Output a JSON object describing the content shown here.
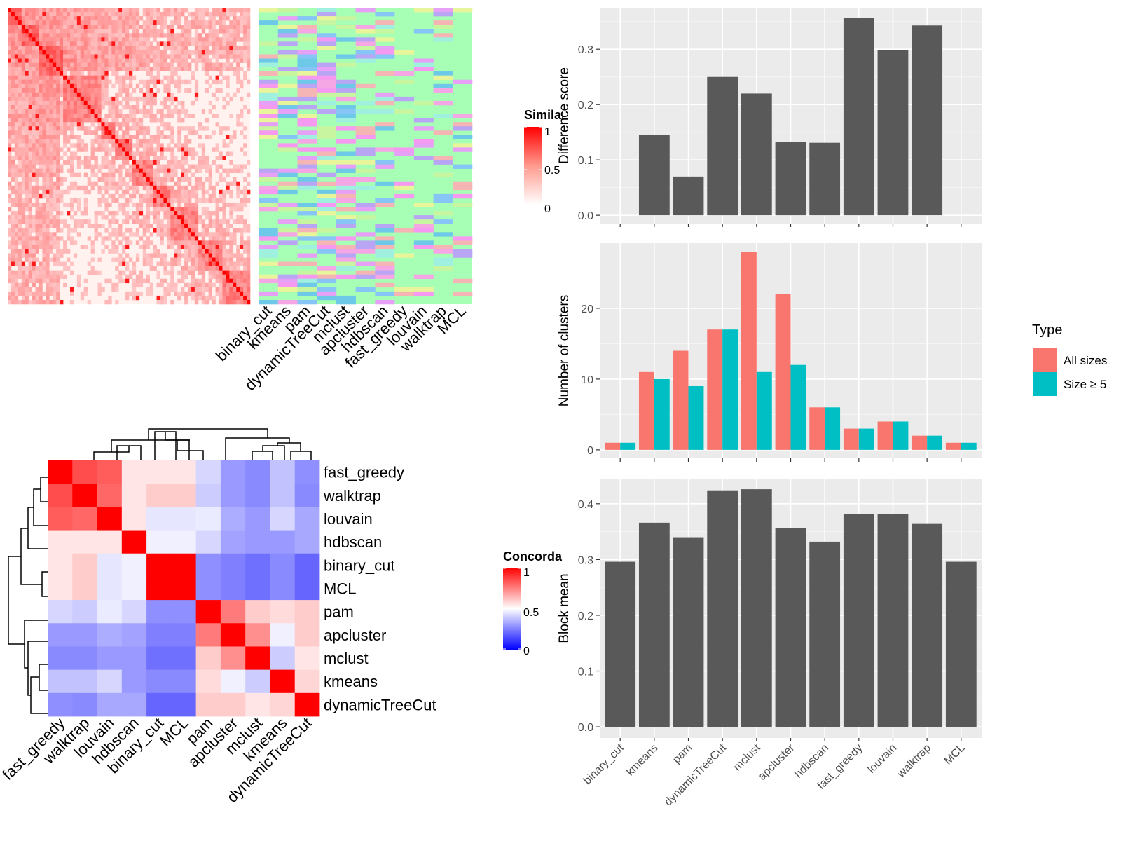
{
  "colors": {
    "panel_bg": "#EBEBEB",
    "grid": "#FFFFFF",
    "bar_dark": "#595959",
    "all_sizes": "#F8766D",
    "size_ge_5": "#00BFC4",
    "sim_high": "#FF0000",
    "sim_low": "#FFFFFF",
    "conc_low": "#0000FF",
    "conc_mid": "#FFFFFF",
    "conc_high": "#FF0000",
    "label_green": "#A6FFB5"
  },
  "similarity_heatmap": {
    "legend_title": "Similarity",
    "legend_ticks": [
      "1",
      "0.5",
      "0"
    ]
  },
  "label_matrix": {
    "columns": [
      "binary_cut",
      "kmeans",
      "pam",
      "dynamicTreeCut",
      "mclust",
      "apcluster",
      "hdbscan",
      "fast_greedy",
      "louvain",
      "walktrap",
      "MCL"
    ]
  },
  "concordance_heatmap": {
    "legend_title": "Concordance",
    "legend_ticks": [
      "1",
      "0.5",
      "0"
    ],
    "rows": [
      "fast_greedy",
      "walktrap",
      "louvain",
      "hdbscan",
      "binary_cut",
      "MCL",
      "pam",
      "apcluster",
      "mclust",
      "kmeans",
      "dynamicTreeCut"
    ],
    "columns": [
      "fast_greedy",
      "walktrap",
      "louvain",
      "hdbscan",
      "binary_cut",
      "MCL",
      "pam",
      "apcluster",
      "mclust",
      "kmeans",
      "dynamicTreeCut"
    ],
    "values": [
      [
        1.0,
        0.85,
        0.82,
        0.55,
        0.55,
        0.55,
        0.42,
        0.3,
        0.27,
        0.38,
        0.28
      ],
      [
        0.85,
        1.0,
        0.8,
        0.55,
        0.6,
        0.6,
        0.4,
        0.3,
        0.27,
        0.38,
        0.27
      ],
      [
        0.82,
        0.8,
        1.0,
        0.55,
        0.45,
        0.45,
        0.46,
        0.34,
        0.3,
        0.42,
        0.33
      ],
      [
        0.55,
        0.55,
        0.55,
        1.0,
        0.47,
        0.47,
        0.42,
        0.32,
        0.3,
        0.3,
        0.33
      ],
      [
        0.55,
        0.6,
        0.45,
        0.47,
        1.0,
        1.0,
        0.28,
        0.25,
        0.22,
        0.27,
        0.2
      ],
      [
        0.55,
        0.6,
        0.45,
        0.47,
        1.0,
        1.0,
        0.28,
        0.25,
        0.22,
        0.27,
        0.2
      ],
      [
        0.42,
        0.4,
        0.46,
        0.42,
        0.28,
        0.28,
        1.0,
        0.76,
        0.6,
        0.57,
        0.6
      ],
      [
        0.3,
        0.3,
        0.34,
        0.32,
        0.25,
        0.25,
        0.76,
        1.0,
        0.72,
        0.47,
        0.6
      ],
      [
        0.27,
        0.27,
        0.3,
        0.3,
        0.22,
        0.22,
        0.6,
        0.72,
        1.0,
        0.4,
        0.55
      ],
      [
        0.38,
        0.38,
        0.42,
        0.3,
        0.27,
        0.27,
        0.57,
        0.47,
        0.4,
        1.0,
        0.58
      ],
      [
        0.28,
        0.27,
        0.33,
        0.33,
        0.2,
        0.2,
        0.6,
        0.6,
        0.55,
        0.58,
        1.0
      ]
    ]
  },
  "chart_data": [
    {
      "type": "bar",
      "ylabel": "Difference score",
      "categories": [
        "binary_cut",
        "kmeans",
        "pam",
        "dynamicTreeCut",
        "mclust",
        "apcluster",
        "hdbscan",
        "fast_greedy",
        "louvain",
        "walktrap",
        "MCL"
      ],
      "values": [
        0,
        0.145,
        0.07,
        0.25,
        0.22,
        0.133,
        0.131,
        0.357,
        0.298,
        0.343,
        0
      ],
      "ylim": [
        -0.015,
        0.375
      ],
      "yticks": [
        "0.0",
        "0.1",
        "0.2",
        "0.3"
      ],
      "ytick_values": [
        0,
        0.1,
        0.2,
        0.3
      ],
      "grid": true
    },
    {
      "type": "bar",
      "ylabel": "Number of clusters",
      "categories": [
        "binary_cut",
        "kmeans",
        "pam",
        "dynamicTreeCut",
        "mclust",
        "apcluster",
        "hdbscan",
        "fast_greedy",
        "louvain",
        "walktrap",
        "MCL"
      ],
      "series": [
        {
          "name": "All sizes",
          "values": [
            1,
            11,
            14,
            17,
            28,
            22,
            6,
            3,
            4,
            2,
            1
          ]
        },
        {
          "name": "Size ≥ 5",
          "values": [
            1,
            10,
            9,
            17,
            11,
            12,
            6,
            3,
            4,
            2,
            1
          ]
        }
      ],
      "legend": {
        "title": "Type",
        "position": "right"
      },
      "ylim": [
        -1.2,
        29.2
      ],
      "yticks": [
        "0",
        "10",
        "20"
      ],
      "ytick_values": [
        0,
        10,
        20
      ],
      "grid": true
    },
    {
      "type": "bar",
      "ylabel": "Block mean",
      "categories": [
        "binary_cut",
        "kmeans",
        "pam",
        "dynamicTreeCut",
        "mclust",
        "apcluster",
        "hdbscan",
        "fast_greedy",
        "louvain",
        "walktrap",
        "MCL"
      ],
      "values": [
        0.296,
        0.366,
        0.34,
        0.424,
        0.426,
        0.356,
        0.332,
        0.381,
        0.381,
        0.365,
        0.296
      ],
      "ylim": [
        -0.02,
        0.445
      ],
      "yticks": [
        "0.0",
        "0.1",
        "0.2",
        "0.3",
        "0.4"
      ],
      "ytick_values": [
        0,
        0.1,
        0.2,
        0.3,
        0.4
      ],
      "grid": true
    }
  ]
}
